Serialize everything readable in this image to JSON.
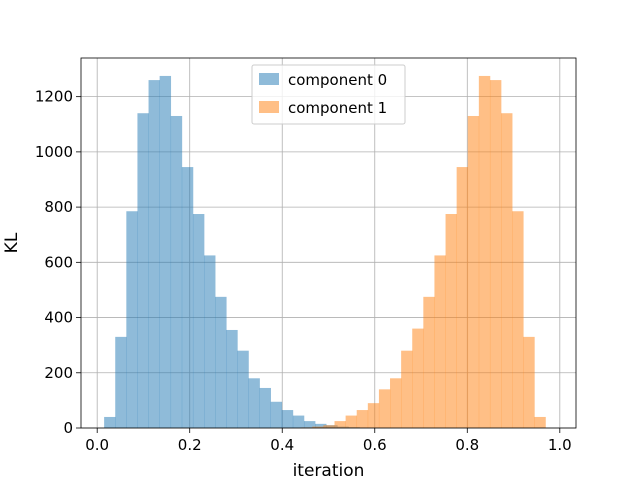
{
  "chart_data": {
    "type": "bar",
    "title": "",
    "xlabel": "iteration",
    "ylabel": "KL",
    "xlim": [
      -0.035,
      1.035
    ],
    "ylim": [
      0,
      1340
    ],
    "xticks": [
      0.0,
      0.2,
      0.4,
      0.6,
      0.8,
      1.0
    ],
    "xtick_labels": [
      "0.0",
      "0.2",
      "0.4",
      "0.6",
      "0.8",
      "1.0"
    ],
    "yticks": [
      0,
      200,
      400,
      600,
      800,
      1000,
      1200
    ],
    "ytick_labels": [
      "0",
      "200",
      "400",
      "600",
      "800",
      "1000",
      "1200"
    ],
    "grid": true,
    "legend_position": "upper center",
    "bin_width": 0.024,
    "series": [
      {
        "name": "component 0",
        "color": "#1f77b4",
        "opacity": 0.5,
        "bin_start": 0.015,
        "values": [
          40,
          330,
          785,
          1140,
          1260,
          1275,
          1130,
          945,
          775,
          625,
          475,
          355,
          280,
          180,
          145,
          95,
          65,
          45,
          25,
          15,
          10,
          5,
          3,
          1
        ]
      },
      {
        "name": "component 1",
        "color": "#ff7f0e",
        "opacity": 0.5,
        "bin_start": 0.441,
        "values": [
          2,
          5,
          10,
          25,
          45,
          65,
          90,
          140,
          180,
          280,
          360,
          475,
          625,
          775,
          945,
          1130,
          1275,
          1260,
          1140,
          785,
          330,
          40
        ]
      }
    ]
  }
}
